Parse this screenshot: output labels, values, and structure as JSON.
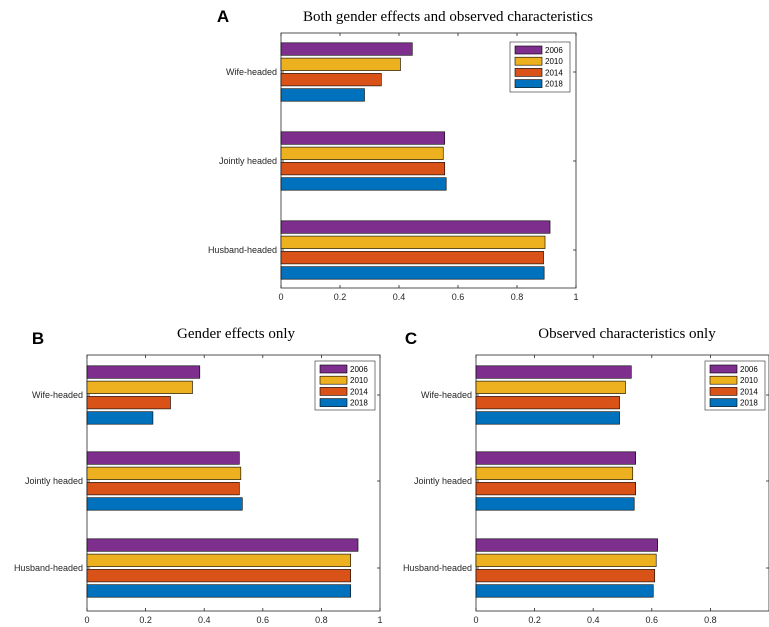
{
  "colors": {
    "2006": "#7E2F8E",
    "2010": "#EDB120",
    "2014": "#D95319",
    "2018": "#0072BD"
  },
  "chart_data": [
    {
      "panel": "A",
      "type": "bar",
      "orientation": "horizontal",
      "title": "Both gender effects and observed characteristics",
      "categories": [
        "Wife-headed",
        "Jointly headed",
        "Husband-headed"
      ],
      "series": [
        {
          "name": "2006",
          "values": [
            0.445,
            0.555,
            0.912
          ]
        },
        {
          "name": "2010",
          "values": [
            0.405,
            0.55,
            0.895
          ]
        },
        {
          "name": "2014",
          "values": [
            0.34,
            0.555,
            0.89
          ]
        },
        {
          "name": "2018",
          "values": [
            0.283,
            0.56,
            0.892
          ]
        }
      ],
      "xlim": [
        0,
        1
      ],
      "xticks": [
        "0",
        "0.2",
        "0.4",
        "0.6",
        "0.8",
        "1"
      ],
      "legend": "top-right"
    },
    {
      "panel": "B",
      "type": "bar",
      "orientation": "horizontal",
      "title": "Gender effects only",
      "categories": [
        "Wife-headed",
        "Jointly headed",
        "Husband-headed"
      ],
      "series": [
        {
          "name": "2006",
          "values": [
            0.385,
            0.52,
            0.925
          ]
        },
        {
          "name": "2010",
          "values": [
            0.36,
            0.525,
            0.9
          ]
        },
        {
          "name": "2014",
          "values": [
            0.285,
            0.52,
            0.9
          ]
        },
        {
          "name": "2018",
          "values": [
            0.225,
            0.53,
            0.9
          ]
        }
      ],
      "xlim": [
        0,
        1
      ],
      "xticks": [
        "0",
        "0.2",
        "0.4",
        "0.6",
        "0.8",
        "1"
      ],
      "legend": "top-right"
    },
    {
      "panel": "C",
      "type": "bar",
      "orientation": "horizontal",
      "title": "Observed characteristics only",
      "categories": [
        "Wife-headed",
        "Jointly headed",
        "Husband-headed"
      ],
      "series": [
        {
          "name": "2006",
          "values": [
            0.53,
            0.545,
            0.62
          ]
        },
        {
          "name": "2010",
          "values": [
            0.51,
            0.535,
            0.615
          ]
        },
        {
          "name": "2014",
          "values": [
            0.49,
            0.545,
            0.61
          ]
        },
        {
          "name": "2018",
          "values": [
            0.49,
            0.54,
            0.605
          ]
        }
      ],
      "xlim": [
        0,
        1
      ],
      "xticks": [
        "0",
        "0.2",
        "0.4",
        "0.6",
        "0.8"
      ],
      "legend": "top-right"
    }
  ]
}
